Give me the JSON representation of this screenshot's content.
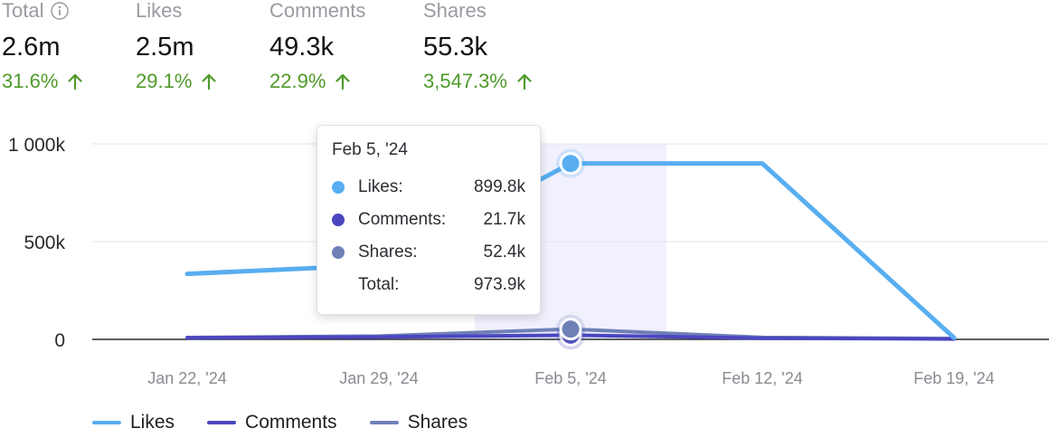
{
  "kpis": [
    {
      "label": "Total",
      "value": "2.6m",
      "change": "31.6%",
      "info_icon": "info-icon",
      "trend_icon": "arrow-up-icon"
    },
    {
      "label": "Likes",
      "value": "2.5m",
      "change": "29.1%",
      "trend_icon": "arrow-up-icon"
    },
    {
      "label": "Comments",
      "value": "49.3k",
      "change": "22.9%",
      "trend_icon": "arrow-up-icon"
    },
    {
      "label": "Shares",
      "value": "55.3k",
      "change": "3,547.3%",
      "trend_icon": "arrow-up-icon"
    }
  ],
  "colors": {
    "likes": "#58aef0",
    "comments": "#4b46c0",
    "shares": "#6f80b6",
    "positive_change": "#4f9a2a",
    "highlight": "#f1f0fd"
  },
  "chart_data": {
    "type": "line",
    "x": [
      "Jan 22, '24",
      "Jan 29, '24",
      "Feb 5, '24",
      "Feb 12, '24",
      "Feb 19, '24"
    ],
    "y_ticks": [
      "0",
      "500k",
      "1 000k"
    ],
    "ylim": [
      0,
      1000000
    ],
    "grid": true,
    "legend_position": "bottom-left",
    "highlighted_x": "Feb 5, '24",
    "series": [
      {
        "name": "Likes",
        "key": "likes",
        "values": [
          335000,
          380000,
          899800,
          899800,
          8000
        ]
      },
      {
        "name": "Comments",
        "key": "comments",
        "values": [
          8000,
          12000,
          21700,
          6000,
          2000
        ]
      },
      {
        "name": "Shares",
        "key": "shares",
        "values": [
          9000,
          17000,
          52400,
          10000,
          4000
        ]
      }
    ]
  },
  "tooltip": {
    "date": "Feb 5, '24",
    "rows": [
      {
        "name": "Likes:",
        "value": "899.8k",
        "key": "likes"
      },
      {
        "name": "Comments:",
        "value": "21.7k",
        "key": "comments"
      },
      {
        "name": "Shares:",
        "value": "52.4k",
        "key": "shares"
      }
    ],
    "total_label": "Total:",
    "total_value": "973.9k"
  },
  "legend": [
    {
      "label": "Likes",
      "key": "likes"
    },
    {
      "label": "Comments",
      "key": "comments"
    },
    {
      "label": "Shares",
      "key": "shares"
    }
  ]
}
